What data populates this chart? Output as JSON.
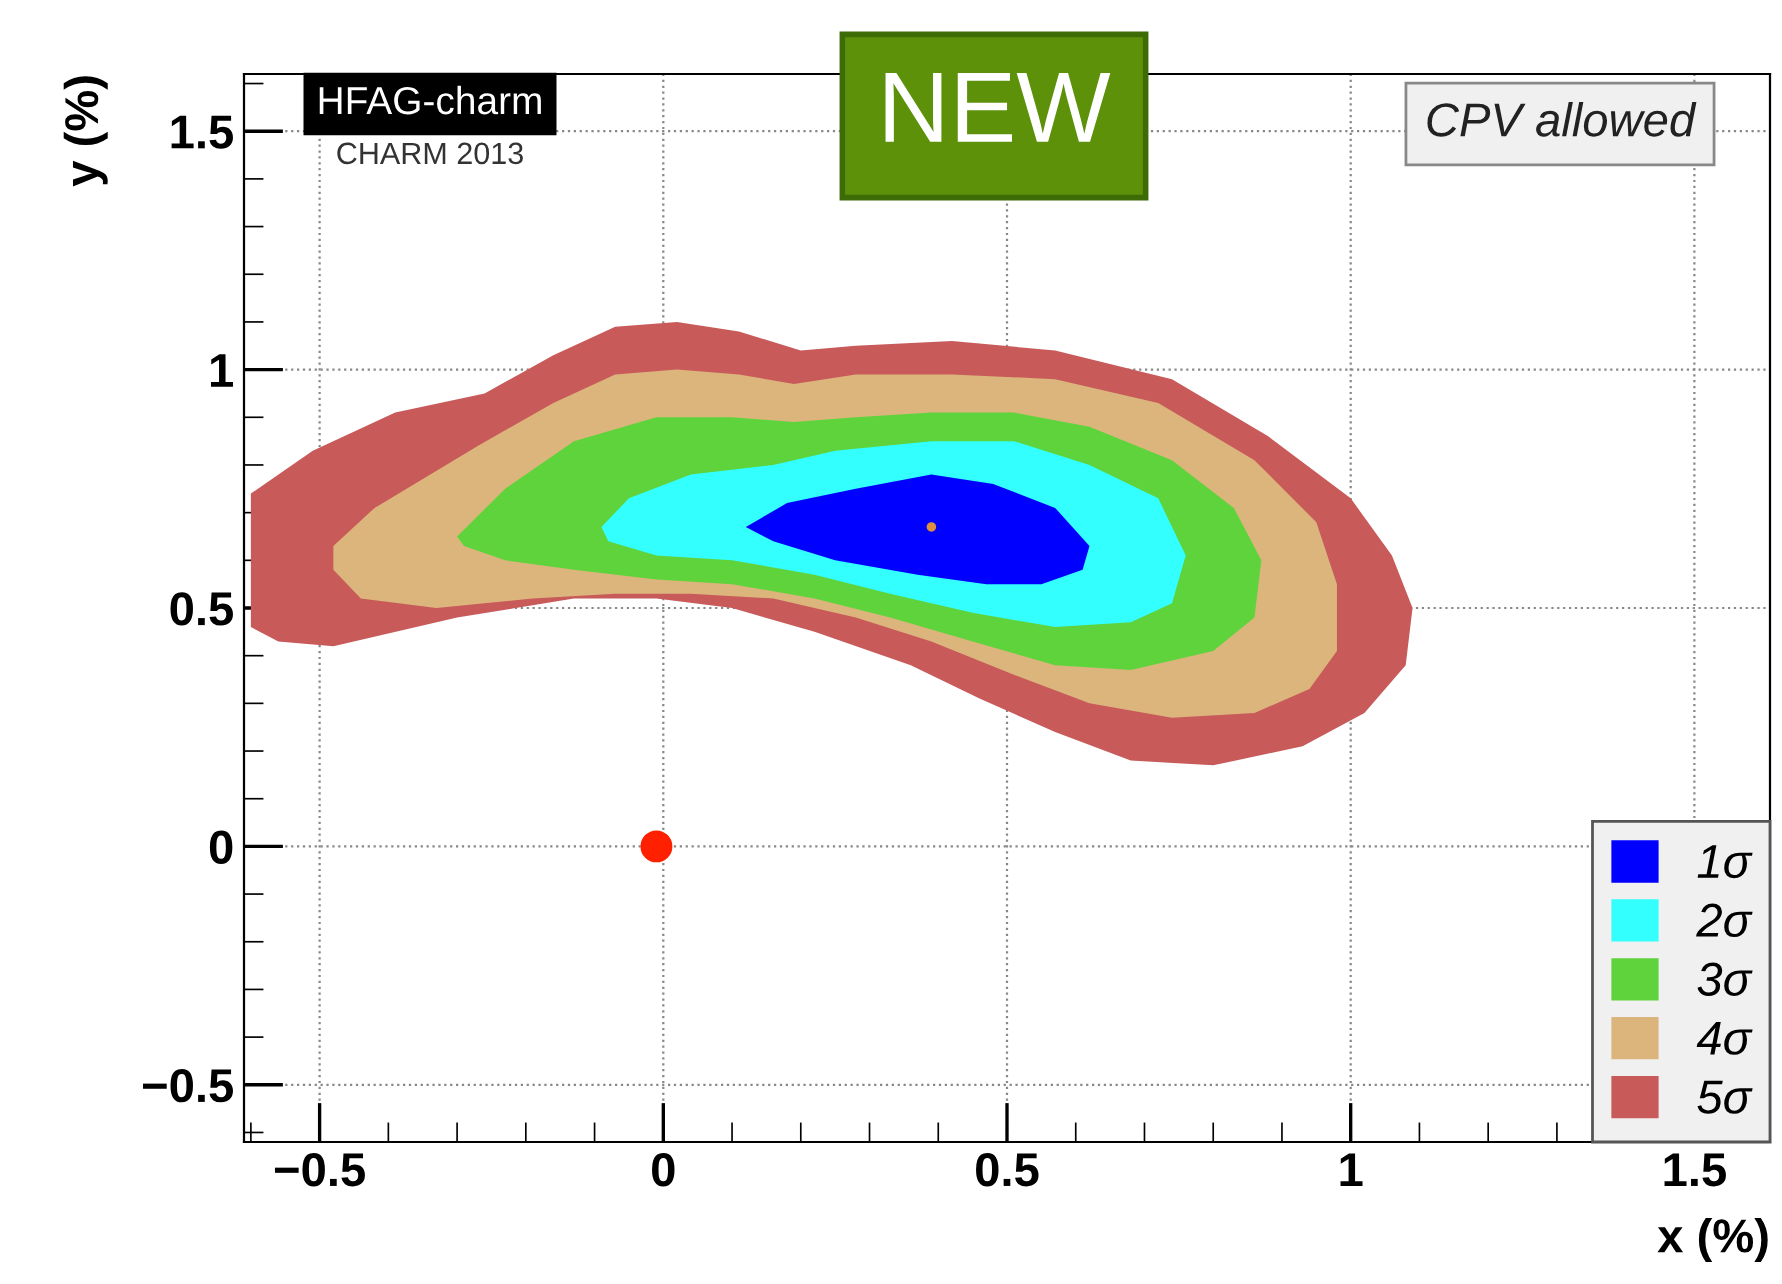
{
  "chart_data": {
    "type": "area",
    "xlabel": "x (%)",
    "ylabel": "y (%)",
    "xlim": [
      -0.61,
      1.61
    ],
    "ylim": [
      -0.62,
      1.62
    ],
    "xticks": [
      {
        "value": -0.5,
        "label": "−0.5"
      },
      0,
      0.5,
      1,
      1.5
    ],
    "yticks": [
      {
        "value": -0.5,
        "label": "−0.5"
      },
      0,
      0.5,
      1,
      1.5
    ],
    "grid": true,
    "legend": "bottom right",
    "annotations": [
      "HFAG-charm",
      "CHARM 2013",
      "NEW",
      "CPV allowed"
    ],
    "series": [
      {
        "name": "1σ",
        "color": "#0000ff",
        "x": [
          0.12,
          0.18,
          0.28,
          0.39,
          0.48,
          0.57,
          0.62,
          0.61,
          0.55,
          0.47,
          0.37,
          0.25,
          0.16
        ],
        "values": [
          0.67,
          0.72,
          0.75,
          0.78,
          0.76,
          0.71,
          0.63,
          0.58,
          0.55,
          0.55,
          0.57,
          0.6,
          0.64
        ]
      },
      {
        "name": "2σ",
        "color": "#33ffff",
        "x": [
          -0.09,
          -0.05,
          0.04,
          0.16,
          0.25,
          0.39,
          0.51,
          0.62,
          0.72,
          0.76,
          0.74,
          0.68,
          0.57,
          0.45,
          0.33,
          0.22,
          0.1,
          -0.01,
          -0.08
        ],
        "values": [
          0.67,
          0.73,
          0.78,
          0.8,
          0.83,
          0.85,
          0.85,
          0.8,
          0.73,
          0.61,
          0.51,
          0.47,
          0.46,
          0.49,
          0.53,
          0.57,
          0.6,
          0.61,
          0.64
        ]
      },
      {
        "name": "3σ",
        "color": "#5fd33c",
        "x": [
          -0.3,
          -0.23,
          -0.13,
          -0.01,
          0.1,
          0.19,
          0.28,
          0.39,
          0.51,
          0.62,
          0.74,
          0.83,
          0.87,
          0.86,
          0.8,
          0.68,
          0.57,
          0.45,
          0.33,
          0.22,
          0.1,
          -0.01,
          -0.13,
          -0.23,
          -0.29
        ],
        "values": [
          0.65,
          0.75,
          0.85,
          0.9,
          0.9,
          0.89,
          0.9,
          0.91,
          0.91,
          0.88,
          0.81,
          0.71,
          0.6,
          0.48,
          0.41,
          0.37,
          0.38,
          0.43,
          0.48,
          0.52,
          0.55,
          0.56,
          0.58,
          0.6,
          0.63
        ]
      },
      {
        "name": "4σ",
        "color": "#dcb57d",
        "x": [
          -0.48,
          -0.42,
          -0.27,
          -0.16,
          -0.07,
          0.02,
          0.11,
          0.19,
          0.28,
          0.42,
          0.57,
          0.72,
          0.86,
          0.95,
          0.98,
          0.98,
          0.94,
          0.86,
          0.74,
          0.62,
          0.51,
          0.39,
          0.28,
          0.16,
          0.04,
          -0.07,
          -0.19,
          -0.33,
          -0.44,
          -0.48
        ],
        "values": [
          0.63,
          0.71,
          0.84,
          0.93,
          0.99,
          1.0,
          0.99,
          0.97,
          0.99,
          0.99,
          0.98,
          0.93,
          0.81,
          0.68,
          0.55,
          0.41,
          0.33,
          0.28,
          0.27,
          0.3,
          0.36,
          0.43,
          0.48,
          0.52,
          0.53,
          0.53,
          0.52,
          0.5,
          0.52,
          0.58
        ]
      },
      {
        "name": "5σ",
        "color": "#c85a5a",
        "x": [
          -0.6,
          -0.51,
          -0.39,
          -0.26,
          -0.16,
          -0.07,
          0.02,
          0.11,
          0.2,
          0.28,
          0.42,
          0.57,
          0.74,
          0.88,
          1.0,
          1.06,
          1.09,
          1.08,
          1.02,
          0.93,
          0.8,
          0.68,
          0.57,
          0.46,
          0.36,
          0.22,
          0.1,
          -0.01,
          -0.13,
          -0.3,
          -0.48,
          -0.56,
          -0.6,
          -0.6
        ],
        "values": [
          0.74,
          0.83,
          0.91,
          0.95,
          1.03,
          1.09,
          1.1,
          1.08,
          1.04,
          1.05,
          1.06,
          1.04,
          0.98,
          0.86,
          0.73,
          0.61,
          0.5,
          0.38,
          0.28,
          0.21,
          0.17,
          0.18,
          0.24,
          0.31,
          0.38,
          0.45,
          0.5,
          0.52,
          0.52,
          0.48,
          0.42,
          0.43,
          0.46,
          0.6
        ]
      },
      {
        "type": "scatter",
        "marker": "circle",
        "color": "#ff2000",
        "x": [
          -0.01
        ],
        "values": [
          0.0
        ]
      },
      {
        "type": "scatter",
        "marker": "circle",
        "color": "#e0903c",
        "x": [
          0.39
        ],
        "values": [
          0.67
        ]
      }
    ]
  }
}
